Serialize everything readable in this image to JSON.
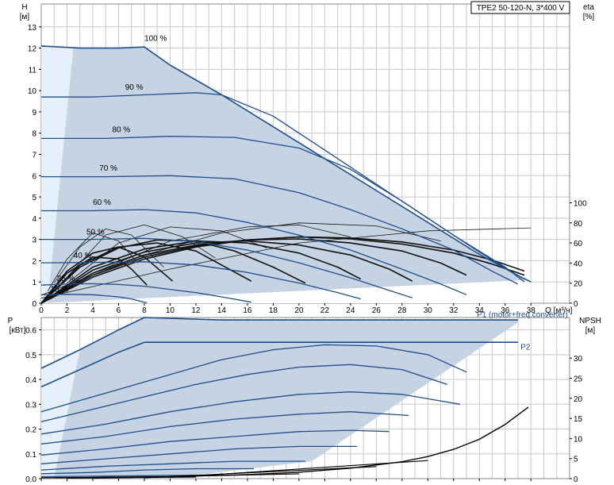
{
  "chart_data": [
    {
      "type": "line",
      "title": "TPE2 50-120-N, 3*400 V",
      "x_label": "Q [м³/ч]",
      "x_ticks": [
        "0",
        "2",
        "4",
        "6",
        "8",
        "10",
        "12",
        "14",
        "16",
        "18",
        "20",
        "22",
        "24",
        "26",
        "28",
        "30",
        "32",
        "34",
        "36",
        "38"
      ],
      "xlim": [
        0,
        41
      ],
      "ylabel_left": "H",
      "ylabel_left_unit": "[м]",
      "y_left_ticks": [
        "0",
        "1",
        "2",
        "3",
        "4",
        "5",
        "6",
        "7",
        "8",
        "9",
        "10",
        "11",
        "12",
        "13"
      ],
      "ylim_left": [
        0,
        14
      ],
      "ylabel_right": "eta",
      "ylabel_right_unit": "[%]",
      "y_right_ticks": [
        "0",
        "20",
        "40",
        "60",
        "80",
        "100"
      ],
      "ylim_right": [
        0,
        100
      ],
      "grid": true,
      "speed_labels": [
        "100 %",
        "90 %",
        "80 %",
        "70 %",
        "60 %",
        "50 %",
        "40 %",
        "25 %",
        "15 %"
      ],
      "head_curves": [
        {
          "name": "100 %",
          "q": [
            0,
            3,
            6,
            8,
            10,
            14,
            18,
            22,
            26,
            30,
            34,
            37,
            38
          ],
          "h": [
            12.1,
            12.0,
            12.0,
            12.05,
            11.2,
            9.8,
            8.3,
            6.8,
            5.3,
            3.8,
            2.3,
            1.3,
            1.0
          ]
        },
        {
          "name": "90 %",
          "q": [
            0,
            4,
            8,
            12,
            14,
            18,
            22,
            26,
            30,
            34,
            37,
            38
          ],
          "h": [
            9.7,
            9.7,
            9.8,
            9.9,
            9.8,
            8.8,
            7.2,
            5.6,
            4.0,
            2.4,
            1.3,
            1.0
          ]
        },
        {
          "name": "80 %",
          "q": [
            0,
            5,
            10,
            15,
            20,
            24,
            28,
            32,
            36,
            37.5
          ],
          "h": [
            7.75,
            7.75,
            7.85,
            7.8,
            7.3,
            6.3,
            4.8,
            3.2,
            1.7,
            1.0
          ]
        },
        {
          "name": "70 %",
          "q": [
            0,
            5,
            10,
            15,
            20,
            24,
            28,
            32,
            35,
            37
          ],
          "h": [
            5.95,
            5.95,
            6.0,
            5.85,
            5.2,
            4.4,
            3.5,
            2.5,
            1.5,
            0.9
          ]
        },
        {
          "name": "60 %",
          "q": [
            0,
            4,
            8,
            12,
            16,
            20,
            24,
            28,
            31,
            33
          ],
          "h": [
            4.35,
            4.35,
            4.4,
            4.25,
            3.8,
            3.2,
            2.5,
            1.6,
            0.9,
            0.4
          ]
        },
        {
          "name": "50 %",
          "q": [
            0,
            4,
            8,
            12,
            16,
            20,
            24,
            27,
            28.8
          ],
          "h": [
            3.0,
            3.0,
            3.05,
            2.9,
            2.5,
            1.9,
            1.2,
            0.6,
            0.25
          ]
        },
        {
          "name": "40 %",
          "q": [
            0,
            4,
            8,
            12,
            16,
            20,
            23,
            24.8
          ],
          "h": [
            1.9,
            1.92,
            1.95,
            1.8,
            1.45,
            0.95,
            0.5,
            0.2
          ]
        },
        {
          "name": "25 %",
          "q": [
            0,
            2,
            4,
            6,
            8,
            10,
            12,
            14,
            16.3
          ],
          "h": [
            0.85,
            0.9,
            0.92,
            0.88,
            0.8,
            0.65,
            0.5,
            0.3,
            0.05
          ]
        },
        {
          "name": "15 %",
          "q": [
            0,
            2,
            4,
            6,
            7,
            8.2
          ],
          "h": [
            0.4,
            0.42,
            0.4,
            0.3,
            0.2,
            0.02
          ]
        }
      ],
      "efficiency_curves": [
        {
          "q": [
            0,
            4,
            8,
            12,
            16,
            20,
            24,
            28,
            32,
            35,
            37.5
          ],
          "eta": [
            0,
            26,
            44,
            56,
            63,
            66,
            65,
            61,
            53,
            43,
            32
          ]
        },
        {
          "q": [
            0,
            4,
            8,
            12,
            16,
            20,
            24,
            28,
            32,
            35,
            37.5
          ],
          "eta": [
            0,
            28,
            46,
            57,
            63,
            66,
            64,
            59,
            50,
            39,
            28
          ]
        },
        {
          "q": [
            0,
            4,
            8,
            12,
            16,
            20,
            24,
            28,
            31,
            33
          ],
          "eta": [
            0,
            30,
            48,
            58,
            63,
            64,
            60,
            52,
            40,
            28
          ]
        },
        {
          "q": [
            0,
            4,
            8,
            12,
            16,
            20,
            24,
            27,
            28.8
          ],
          "eta": [
            0,
            33,
            51,
            60,
            62,
            58,
            48,
            34,
            22
          ]
        },
        {
          "q": [
            0,
            4,
            8,
            12,
            16,
            20,
            23,
            24.8
          ],
          "eta": [
            0,
            36,
            54,
            62,
            60,
            50,
            36,
            24
          ]
        },
        {
          "q": [
            0,
            3,
            6,
            9,
            12,
            15,
            18,
            20.5
          ],
          "eta": [
            0,
            36,
            55,
            63,
            62,
            52,
            36,
            20
          ]
        },
        {
          "q": [
            0,
            3,
            6,
            9,
            12,
            14,
            16.3
          ],
          "eta": [
            0,
            38,
            56,
            60,
            52,
            38,
            22
          ]
        },
        {
          "q": [
            0,
            2,
            4,
            6,
            8,
            10.2
          ],
          "eta": [
            0,
            32,
            50,
            56,
            46,
            22
          ]
        },
        {
          "q": [
            0,
            2,
            4,
            6,
            7,
            8.2
          ],
          "eta": [
            0,
            30,
            46,
            44,
            34,
            18
          ]
        },
        {
          "q": [
            0,
            10,
            20,
            30,
            38
          ],
          "eta": [
            5,
            34,
            60,
            72,
            75
          ]
        },
        {
          "q": [
            0,
            8,
            14,
            20,
            26,
            31
          ],
          "eta": [
            8,
            48,
            70,
            80,
            77,
            62
          ]
        },
        {
          "q": [
            4,
            10,
            16,
            20,
            24
          ],
          "eta": [
            30,
            62,
            76,
            78,
            66
          ]
        },
        {
          "q": [
            2,
            6,
            10,
            14,
            17.5
          ],
          "eta": [
            20,
            60,
            76,
            72,
            55
          ]
        },
        {
          "q": [
            2,
            5,
            8,
            11,
            13.5
          ],
          "eta": [
            26,
            68,
            78,
            66,
            45
          ]
        },
        {
          "q": [
            1,
            3,
            5,
            7,
            9.5
          ],
          "eta": [
            20,
            56,
            74,
            68,
            36
          ]
        },
        {
          "q": [
            0.5,
            2,
            4,
            6,
            7.5
          ],
          "eta": [
            12,
            44,
            70,
            62,
            40
          ]
        }
      ]
    },
    {
      "type": "line",
      "x_ticks": [
        "0",
        "2",
        "4",
        "6",
        "8",
        "10",
        "12",
        "14",
        "16",
        "18",
        "20",
        "22",
        "24",
        "26",
        "28",
        "30",
        "32",
        "34",
        "36",
        "38"
      ],
      "xlim": [
        0,
        41
      ],
      "ylabel_left": "P",
      "ylabel_left_unit": "[кВт]",
      "y_left_ticks": [
        "0.0",
        "0.1",
        "0.2",
        "0.3",
        "0.4",
        "0.5",
        "0.6"
      ],
      "ylim_left": [
        0,
        0.65
      ],
      "ylabel_right": "NPSH",
      "ylabel_right_unit": "[м]",
      "y_right_ticks": [
        "0",
        "5",
        "10",
        "15",
        "20",
        "25",
        "30"
      ],
      "ylim_right": [
        0,
        32.5
      ],
      "grid": true,
      "series_labels": [
        "P1 (motor+freq.converter)",
        "P2"
      ],
      "power_curves": [
        {
          "name": "P1 (motor+freq.converter)",
          "q": [
            0,
            3,
            6,
            8,
            14,
            20,
            26,
            30,
            34,
            37
          ],
          "p": [
            0.445,
            0.52,
            0.6,
            0.65,
            0.64,
            0.64,
            0.64,
            0.64,
            0.64,
            0.64
          ]
        },
        {
          "name": "P2",
          "q": [
            0,
            3,
            6,
            8,
            14,
            20,
            26,
            30,
            34,
            37
          ],
          "p": [
            0.37,
            0.44,
            0.51,
            0.55,
            0.55,
            0.55,
            0.55,
            0.55,
            0.55,
            0.55
          ]
        },
        {
          "q": [
            0,
            4,
            8,
            12,
            14,
            18,
            22,
            26,
            30,
            33
          ],
          "p": [
            0.27,
            0.33,
            0.39,
            0.45,
            0.48,
            0.52,
            0.54,
            0.535,
            0.5,
            0.43
          ]
        },
        {
          "q": [
            0,
            4,
            8,
            12,
            16,
            20,
            24,
            28,
            31.5
          ],
          "p": [
            0.23,
            0.28,
            0.33,
            0.38,
            0.42,
            0.45,
            0.46,
            0.44,
            0.38
          ]
        },
        {
          "q": [
            0,
            5,
            10,
            15,
            20,
            24,
            28,
            32.5
          ],
          "p": [
            0.18,
            0.22,
            0.27,
            0.31,
            0.34,
            0.35,
            0.34,
            0.3
          ]
        },
        {
          "q": [
            0,
            5,
            10,
            15,
            20,
            24,
            28.5
          ],
          "p": [
            0.14,
            0.17,
            0.21,
            0.24,
            0.26,
            0.27,
            0.255
          ]
        },
        {
          "q": [
            0,
            5,
            10,
            15,
            20,
            24,
            27
          ],
          "p": [
            0.095,
            0.12,
            0.15,
            0.17,
            0.19,
            0.195,
            0.19
          ]
        },
        {
          "q": [
            0,
            5,
            10,
            15,
            20,
            24.5
          ],
          "p": [
            0.06,
            0.08,
            0.1,
            0.12,
            0.13,
            0.13
          ]
        },
        {
          "q": [
            0,
            5,
            10,
            15,
            20.5
          ],
          "p": [
            0.035,
            0.05,
            0.06,
            0.07,
            0.07
          ]
        },
        {
          "q": [
            0,
            4,
            8,
            12,
            16.5
          ],
          "p": [
            0.02,
            0.025,
            0.035,
            0.04,
            0.04
          ]
        },
        {
          "q": [
            0,
            4,
            8,
            12
          ],
          "p": [
            0.008,
            0.01,
            0.012,
            0.014
          ]
        }
      ],
      "npsh_curve": {
        "q": [
          0,
          10,
          16,
          20,
          24,
          28,
          30,
          32,
          34,
          36,
          37.8
        ],
        "npsh": [
          0.2,
          0.5,
          1.0,
          1.6,
          2.6,
          4.2,
          5.5,
          7.3,
          9.8,
          13.5,
          17.8
        ]
      }
    }
  ]
}
